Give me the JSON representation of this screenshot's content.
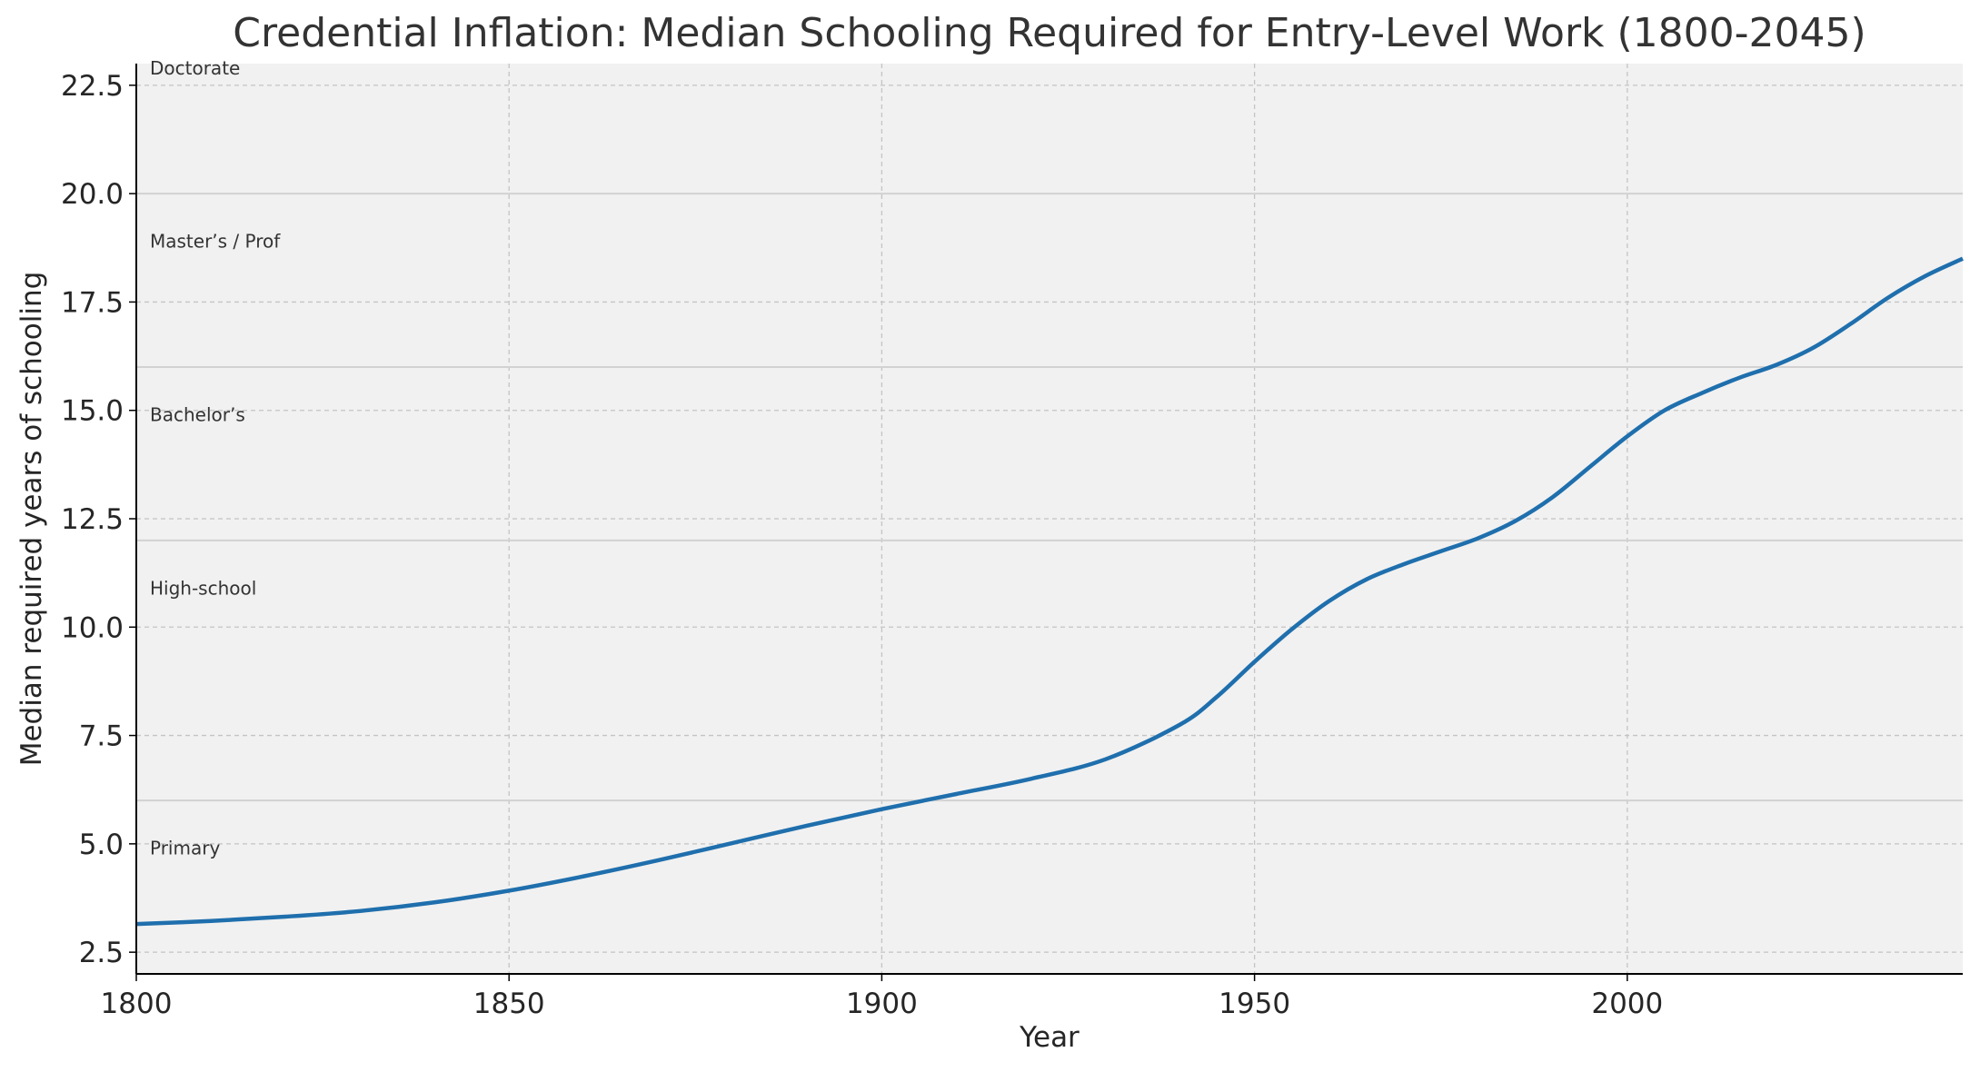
{
  "chart_data": {
    "type": "line",
    "title": "Credential Inflation: Median Schooling Required for Entry-Level Work (1800-2045)",
    "xlabel": "Year",
    "ylabel": "Median required years of schooling",
    "xlim": [
      1800,
      2045
    ],
    "ylim": [
      2.0,
      23.0
    ],
    "xticks": [
      1800,
      1850,
      1900,
      1950,
      2000
    ],
    "xtick_labels": [
      "1800",
      "1850",
      "1900",
      "1950",
      "2000"
    ],
    "yticks": [
      2.5,
      5.0,
      7.5,
      10.0,
      12.5,
      15.0,
      17.5,
      20.0,
      22.5
    ],
    "ytick_labels": [
      "2.5",
      "5.0",
      "7.5",
      "10.0",
      "12.5",
      "15.0",
      "17.5",
      "20.0",
      "22.5"
    ],
    "grid": true,
    "background": "#f1f1f1",
    "line_color": "#1f6fad",
    "threshold_lines": [
      6,
      12,
      16,
      20
    ],
    "bands": [
      {
        "label": "Primary",
        "y": 4.9
      },
      {
        "label": "High-school",
        "y": 10.9
      },
      {
        "label": "Bachelor’s",
        "y": 14.9
      },
      {
        "label": "Master’s / Prof",
        "y": 18.9
      },
      {
        "label": "Doctorate",
        "y": 22.9
      }
    ],
    "series": [
      {
        "x": [
          1800,
          1810,
          1820,
          1830,
          1840,
          1850,
          1860,
          1870,
          1880,
          1890,
          1900,
          1910,
          1920,
          1930,
          1940,
          1945,
          1950,
          1955,
          1960,
          1965,
          1970,
          1975,
          1980,
          1985,
          1990,
          1995,
          2000,
          2005,
          2010,
          2015,
          2020,
          2025,
          2030,
          2035,
          2040,
          2045
        ],
        "values": [
          3.15,
          3.22,
          3.32,
          3.45,
          3.65,
          3.92,
          4.25,
          4.62,
          5.02,
          5.42,
          5.8,
          6.15,
          6.5,
          6.95,
          7.75,
          8.4,
          9.2,
          9.95,
          10.6,
          11.1,
          11.45,
          11.75,
          12.05,
          12.45,
          13.0,
          13.7,
          14.4,
          15.0,
          15.4,
          15.75,
          16.05,
          16.45,
          17.0,
          17.6,
          18.1,
          18.5
        ]
      }
    ]
  }
}
